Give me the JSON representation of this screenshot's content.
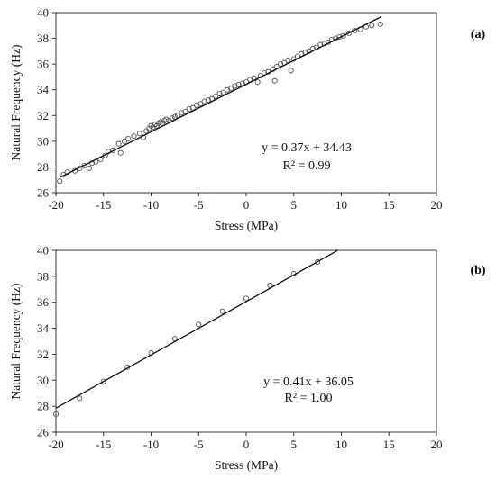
{
  "chart_data": [
    {
      "panel": "(a)",
      "type": "scatter",
      "xlabel": "Stress (MPa)",
      "ylabel": "Natural Frequency (Hz)",
      "xlim": [
        -20,
        20
      ],
      "ylim": [
        26,
        40
      ],
      "xticks": [
        "-20",
        "-15",
        "-10",
        "-5",
        "0",
        "5",
        "10",
        "15",
        "20"
      ],
      "yticks": [
        "26",
        "28",
        "30",
        "32",
        "34",
        "36",
        "38",
        "40"
      ],
      "equation": "y = 0.37x + 34.43",
      "r2": "R² = 0.99",
      "fit": {
        "slope": 0.37,
        "intercept": 34.43,
        "x_range": [
          -19.5,
          14.2
        ]
      },
      "points": [
        [
          -19.6,
          26.9
        ],
        [
          -19.2,
          27.4
        ],
        [
          -18.8,
          27.6
        ],
        [
          -18.0,
          27.7
        ],
        [
          -17.5,
          27.9
        ],
        [
          -17.0,
          28.1
        ],
        [
          -16.5,
          27.9
        ],
        [
          -16.2,
          28.3
        ],
        [
          -15.8,
          28.4
        ],
        [
          -15.3,
          28.6
        ],
        [
          -14.8,
          28.9
        ],
        [
          -14.5,
          29.2
        ],
        [
          -14.0,
          29.3
        ],
        [
          -13.4,
          29.8
        ],
        [
          -13.2,
          29.1
        ],
        [
          -12.8,
          30.0
        ],
        [
          -12.4,
          30.2
        ],
        [
          -11.8,
          30.4
        ],
        [
          -11.2,
          30.6
        ],
        [
          -10.8,
          30.3
        ],
        [
          -10.5,
          30.8
        ],
        [
          -10.2,
          31.0
        ],
        [
          -10.0,
          31.2
        ],
        [
          -9.8,
          31.1
        ],
        [
          -9.6,
          31.3
        ],
        [
          -9.4,
          31.2
        ],
        [
          -9.2,
          31.4
        ],
        [
          -9.0,
          31.5
        ],
        [
          -8.8,
          31.4
        ],
        [
          -8.6,
          31.6
        ],
        [
          -8.4,
          31.7
        ],
        [
          -8.1,
          31.6
        ],
        [
          -7.8,
          31.8
        ],
        [
          -7.5,
          31.9
        ],
        [
          -7.2,
          32.0
        ],
        [
          -6.8,
          32.2
        ],
        [
          -6.4,
          32.3
        ],
        [
          -6.0,
          32.5
        ],
        [
          -5.6,
          32.6
        ],
        [
          -5.2,
          32.8
        ],
        [
          -4.8,
          32.9
        ],
        [
          -4.4,
          33.1
        ],
        [
          -4.0,
          33.2
        ],
        [
          -3.6,
          33.3
        ],
        [
          -3.2,
          33.5
        ],
        [
          -2.8,
          33.7
        ],
        [
          -2.4,
          33.8
        ],
        [
          -2.0,
          34.0
        ],
        [
          -1.6,
          34.1
        ],
        [
          -1.2,
          34.3
        ],
        [
          -0.8,
          34.4
        ],
        [
          -0.4,
          34.5
        ],
        [
          0.0,
          34.6
        ],
        [
          0.4,
          34.8
        ],
        [
          0.8,
          34.9
        ],
        [
          1.2,
          34.6
        ],
        [
          1.5,
          35.1
        ],
        [
          1.9,
          35.3
        ],
        [
          2.3,
          35.4
        ],
        [
          2.8,
          35.6
        ],
        [
          3.0,
          34.7
        ],
        [
          3.2,
          35.8
        ],
        [
          3.6,
          36.0
        ],
        [
          4.0,
          36.1
        ],
        [
          4.4,
          36.3
        ],
        [
          4.7,
          35.5
        ],
        [
          5.0,
          36.4
        ],
        [
          5.4,
          36.6
        ],
        [
          5.8,
          36.8
        ],
        [
          6.2,
          36.9
        ],
        [
          6.6,
          37.0
        ],
        [
          7.0,
          37.2
        ],
        [
          7.4,
          37.3
        ],
        [
          7.8,
          37.5
        ],
        [
          8.2,
          37.6
        ],
        [
          8.6,
          37.7
        ],
        [
          9.0,
          37.9
        ],
        [
          9.4,
          38.0
        ],
        [
          9.8,
          38.1
        ],
        [
          10.2,
          38.2
        ],
        [
          10.8,
          38.4
        ],
        [
          11.4,
          38.6
        ],
        [
          12.0,
          38.7
        ],
        [
          12.6,
          38.9
        ],
        [
          13.2,
          39.0
        ],
        [
          14.1,
          39.1
        ]
      ]
    },
    {
      "panel": "(b)",
      "type": "scatter",
      "xlabel": "Stress (MPa)",
      "ylabel": "Natural Frequency (Hz)",
      "xlim": [
        -20,
        20
      ],
      "ylim": [
        26,
        40
      ],
      "xticks": [
        "-20",
        "-15",
        "-10",
        "-5",
        "0",
        "5",
        "10",
        "15",
        "20"
      ],
      "yticks": [
        "26",
        "28",
        "30",
        "32",
        "34",
        "36",
        "38",
        "40"
      ],
      "equation": "y = 0.41x + 36.05",
      "r2": "R² = 1.00",
      "fit": {
        "slope": 0.41,
        "intercept": 36.05,
        "x_range": [
          -20,
          9.6
        ]
      },
      "points": [
        [
          -20.0,
          27.4
        ],
        [
          -17.5,
          28.6
        ],
        [
          -15.0,
          29.9
        ],
        [
          -12.5,
          31.0
        ],
        [
          -10.0,
          32.1
        ],
        [
          -7.5,
          33.2
        ],
        [
          -5.0,
          34.3
        ],
        [
          -2.5,
          35.3
        ],
        [
          0.0,
          36.3
        ],
        [
          2.5,
          37.3
        ],
        [
          5.0,
          38.2
        ],
        [
          7.5,
          39.1
        ]
      ]
    }
  ]
}
